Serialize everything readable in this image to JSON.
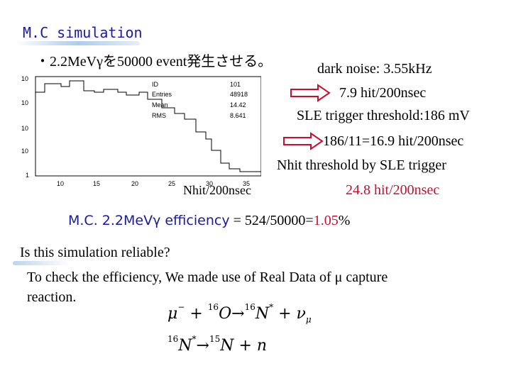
{
  "title": "M.C simulation",
  "subline": "・2.2MeVγを50000 event発生させる。",
  "right_panel": {
    "dark_noise": "dark noise: 3.55kHz",
    "hit_rate": "7.9 hit/200nsec",
    "sle_threshold": "SLE trigger threshold:186 mV",
    "sle_hits": "186/11=16.9 hit/200nsec",
    "nhit_threshold_label": "Nhit threshold by SLE trigger",
    "nhit_value": "24.8",
    "nhit_unit": " hit/200nsec"
  },
  "histogram": {
    "stats": [
      {
        "key": "ID",
        "value": "101"
      },
      {
        "key": "Entries",
        "value": "48918"
      },
      {
        "key": "Mean",
        "value": "14.42"
      },
      {
        "key": "RMS",
        "value": "8.641"
      }
    ],
    "y_ticks": [
      "10",
      "10",
      "10",
      "10",
      "1"
    ],
    "x_ticks": [
      "10",
      "15",
      "20",
      "25",
      "30",
      "35"
    ],
    "xlabel": "Nhit/200nsec"
  },
  "efficiency": {
    "label": "M.C. 2.2MeVγ efficiency",
    "eq": " = 524/50000=",
    "value": "1.05",
    "unit": "%"
  },
  "question": "Is this simulation reliable?",
  "check_line1": "To check the efficiency, We made use of Real Data of μ capture",
  "check_line2": "reaction.",
  "reaction1": {
    "mu": "μ",
    "mu_sup": "−",
    "o_mass": "16",
    "o": "O",
    "arrow": "→",
    "n_mass": "16",
    "n": "N",
    "n_star": "*",
    "plus": " + ",
    "nu": "ν",
    "nu_sub": "μ"
  },
  "reaction2": {
    "n_mass": "16",
    "n": "N",
    "n_star": "*",
    "arrow": "→",
    "n15_mass": "15",
    "n15": "N",
    "plus": " + ",
    "neutron": "n"
  },
  "colors": {
    "title": "#1a1aa0",
    "accent_red": "#c8102e",
    "arrow_fill": "#ffffff",
    "arrow_stroke": "#c8102e"
  }
}
